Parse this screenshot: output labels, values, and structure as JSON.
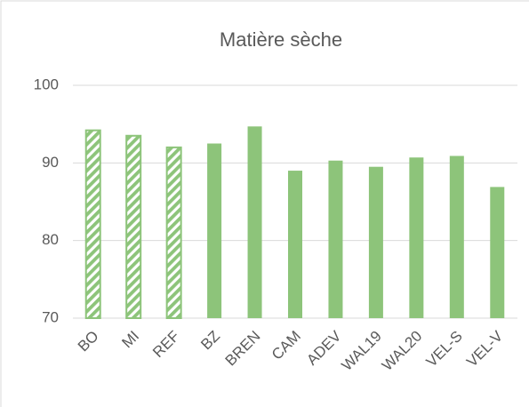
{
  "chart_data": {
    "type": "bar",
    "title": "Matière sèche",
    "categories": [
      "BO",
      "MI",
      "REF",
      "BZ",
      "BREN",
      "CAM",
      "ADEV",
      "WAL19",
      "WAL20",
      "VEL-S",
      "VEL-V"
    ],
    "values": [
      94.2,
      93.5,
      92.0,
      92.5,
      94.7,
      89.0,
      90.3,
      89.5,
      90.7,
      90.9,
      86.9
    ],
    "hatched": [
      true,
      true,
      true,
      false,
      false,
      false,
      false,
      false,
      false,
      false,
      false
    ],
    "color": "#8dc47a",
    "ylim": [
      70,
      100
    ],
    "yticks": [
      70,
      80,
      90,
      100
    ],
    "grid": true
  }
}
